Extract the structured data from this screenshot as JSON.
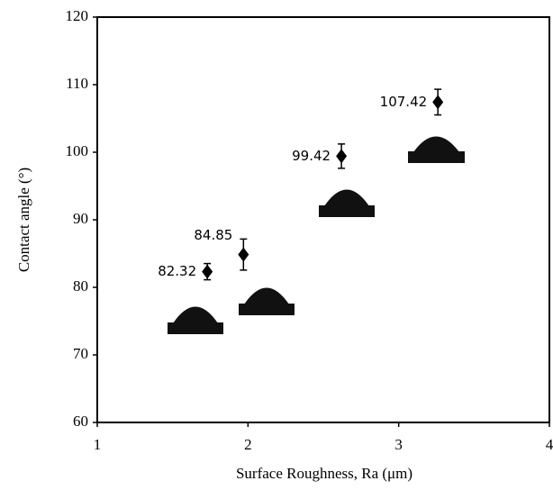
{
  "chart_data": {
    "type": "scatter",
    "x_label": "Surface Roughness, Ra (μm)",
    "y_label": "Contact angle (°)",
    "x": [
      1.73,
      1.97,
      2.62,
      3.26
    ],
    "values": [
      82.32,
      84.85,
      99.42,
      107.42
    ],
    "errors": [
      1.2,
      2.3,
      1.8,
      1.9
    ],
    "color": "#000000",
    "xlim": [
      1,
      4
    ],
    "xticks": [
      1,
      2,
      3,
      4
    ],
    "ylim": [
      60,
      120
    ],
    "yticks": [
      60,
      70,
      80,
      90,
      100,
      110,
      120
    ]
  }
}
